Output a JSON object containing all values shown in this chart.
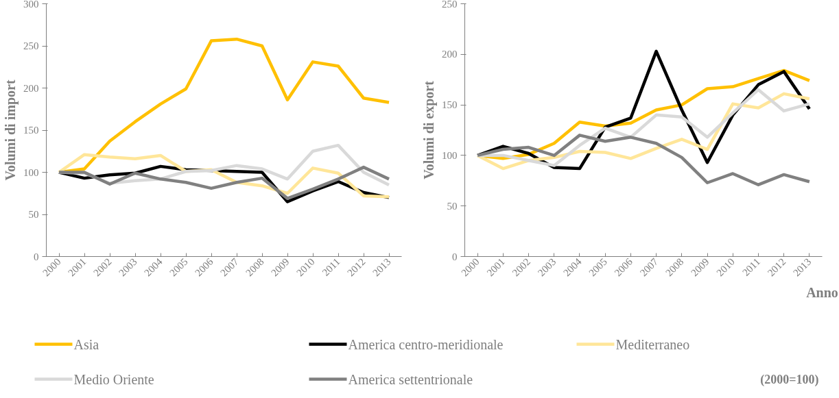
{
  "chart_data": [
    {
      "type": "line",
      "ylabel": "Volumi di import",
      "categories": [
        "2000",
        "2001",
        "2002",
        "2003",
        "2004",
        "2005",
        "2006",
        "2007",
        "2008",
        "2009",
        "2010",
        "2011",
        "2012",
        "2013"
      ],
      "ylim": [
        0,
        300
      ],
      "yticks": [
        0,
        50,
        100,
        150,
        200,
        250,
        300
      ],
      "grid": false,
      "legend": "bottom",
      "series": [
        {
          "name": "Asia",
          "color": "#ffc000",
          "values": [
            100,
            104,
            137,
            160,
            181,
            199,
            256,
            258,
            250,
            186,
            231,
            226,
            188,
            183
          ]
        },
        {
          "name": "America centro-meridionale",
          "color": "#000000",
          "values": [
            100,
            93,
            97,
            99,
            107,
            103,
            102,
            101,
            100,
            65,
            78,
            89,
            76,
            70
          ]
        },
        {
          "name": "Mediterraneo",
          "color": "#ffe699",
          "values": [
            100,
            121,
            118,
            116,
            120,
            101,
            103,
            88,
            84,
            75,
            105,
            99,
            72,
            71
          ]
        },
        {
          "name": "Medio Oriente",
          "color": "#d9d9d9",
          "values": [
            100,
            99,
            87,
            90,
            92,
            101,
            102,
            108,
            104,
            92,
            125,
            132,
            100,
            85
          ]
        },
        {
          "name": "America settentrionale",
          "color": "#808080",
          "values": [
            100,
            100,
            86,
            99,
            92,
            88,
            81,
            88,
            93,
            69,
            80,
            92,
            106,
            92
          ]
        }
      ]
    },
    {
      "type": "line",
      "ylabel": "Volumi di export",
      "xlabel": "Anno",
      "annotations": [
        "(2000=100)"
      ],
      "categories": [
        "2000",
        "2001",
        "2002",
        "2003",
        "2004",
        "2005",
        "2006",
        "2007",
        "2008",
        "2009",
        "2010",
        "2011",
        "2012",
        "2013"
      ],
      "ylim": [
        0,
        250
      ],
      "yticks": [
        0,
        50,
        100,
        150,
        200,
        250
      ],
      "grid": false,
      "series": [
        {
          "color": "#ffc000",
          "values": [
            100,
            97,
            101,
            112,
            133,
            129,
            132,
            145,
            150,
            166,
            168,
            176,
            184,
            174
          ]
        },
        {
          "color": "#000000",
          "values": [
            100,
            109,
            102,
            88,
            87,
            128,
            137,
            203,
            145,
            93,
            140,
            170,
            183,
            146
          ]
        },
        {
          "color": "#ffe699",
          "values": [
            100,
            87,
            95,
            98,
            104,
            103,
            97,
            107,
            116,
            106,
            151,
            147,
            161,
            156
          ]
        },
        {
          "color": "#d9d9d9",
          "values": [
            100,
            100,
            95,
            90,
            110,
            127,
            118,
            140,
            138,
            118,
            142,
            165,
            144,
            151
          ]
        },
        {
          "color": "#808080",
          "values": [
            100,
            106,
            108,
            100,
            120,
            114,
            118,
            112,
            98,
            73,
            82,
            71,
            81,
            74
          ]
        }
      ]
    }
  ]
}
